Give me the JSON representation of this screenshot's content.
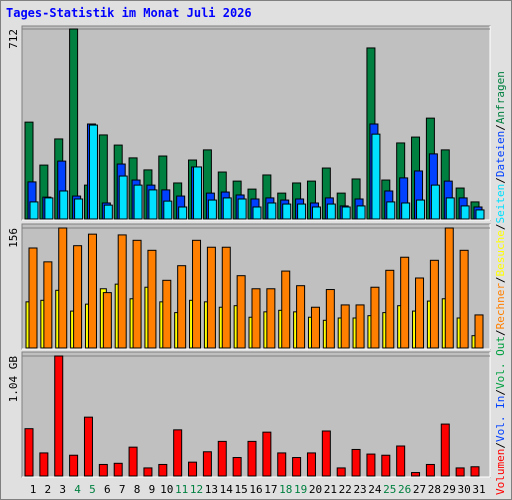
{
  "title": "Tages-Statistik im Monat Juli 2026",
  "legend_separator": "/",
  "chart_data": [
    {
      "type": "bar",
      "ylim": [
        0,
        712
      ],
      "yticks": [
        712
      ],
      "series": [
        {
          "name": "Anfragen",
          "color": "#008040",
          "values": [
            363,
            202,
            300,
            712,
            127,
            315,
            277,
            229,
            184,
            236,
            135,
            221,
            259,
            176,
            142,
            112,
            165,
            97,
            135,
            142,
            191,
            97,
            150,
            641,
            146,
            285,
            307,
            378,
            259,
            116,
            64
          ]
        },
        {
          "name": "Dateien",
          "color": "#0040ff",
          "values": [
            139,
            82,
            217,
            86,
            356,
            60,
            206,
            146,
            127,
            109,
            86,
            195,
            97,
            101,
            90,
            75,
            79,
            71,
            75,
            60,
            79,
            49,
            75,
            356,
            105,
            154,
            180,
            244,
            142,
            79,
            45
          ]
        },
        {
          "name": "Seiten",
          "color": "#00e0ff",
          "values": [
            64,
            79,
            105,
            75,
            352,
            52,
            161,
            127,
            109,
            67,
            45,
            195,
            71,
            79,
            75,
            45,
            60,
            56,
            56,
            45,
            56,
            45,
            49,
            318,
            64,
            60,
            71,
            127,
            79,
            49,
            34
          ]
        }
      ]
    },
    {
      "type": "bar",
      "ylim": [
        0,
        156
      ],
      "yticks": [
        156
      ],
      "series": [
        {
          "name": "Besuche",
          "color": "#ffff00",
          "values": [
            60,
            62,
            75,
            48,
            57,
            77,
            83,
            64,
            79,
            60,
            46,
            62,
            60,
            53,
            55,
            40,
            47,
            49,
            47,
            40,
            36,
            39,
            39,
            42,
            46,
            55,
            48,
            61,
            64,
            39,
            16
          ]
        },
        {
          "name": "Rechner",
          "color": "#ff8000",
          "values": [
            130,
            112,
            156,
            133,
            148,
            72,
            147,
            140,
            127,
            88,
            107,
            140,
            131,
            131,
            94,
            77,
            77,
            100,
            81,
            53,
            76,
            56,
            56,
            79,
            101,
            118,
            91,
            114,
            156,
            127,
            43
          ]
        }
      ]
    },
    {
      "type": "bar",
      "ylim": [
        0,
        1.04
      ],
      "yticks": [
        {
          "value": 1.04,
          "label": "1.04 GB"
        }
      ],
      "categories": [
        "1",
        "2",
        "3",
        "4",
        "5",
        "6",
        "7",
        "8",
        "9",
        "10",
        "11",
        "12",
        "13",
        "14",
        "15",
        "16",
        "17",
        "18",
        "19",
        "20",
        "21",
        "22",
        "23",
        "24",
        "25",
        "26",
        "27",
        "28",
        "29",
        "30",
        "31"
      ],
      "category_colors": [
        "#000000",
        "#000000",
        "#000000",
        "#008040",
        "#008040",
        "#000000",
        "#000000",
        "#000000",
        "#000000",
        "#000000",
        "#008040",
        "#008040",
        "#000000",
        "#000000",
        "#000000",
        "#000000",
        "#000000",
        "#008040",
        "#008040",
        "#000000",
        "#000000",
        "#000000",
        "#000000",
        "#000000",
        "#008040",
        "#008040",
        "#000000",
        "#000000",
        "#000000",
        "#000000",
        "#000000"
      ],
      "series": [
        {
          "name": "Volumen",
          "color": "#ff0000",
          "values": [
            0.41,
            0.2,
            1.04,
            0.18,
            0.51,
            0.1,
            0.11,
            0.25,
            0.07,
            0.1,
            0.4,
            0.12,
            0.21,
            0.3,
            0.16,
            0.3,
            0.38,
            0.2,
            0.16,
            0.2,
            0.39,
            0.07,
            0.23,
            0.19,
            0.18,
            0.26,
            0.03,
            0.1,
            0.45,
            0.07,
            0.08
          ]
        }
      ],
      "legend_only": [
        {
          "name": "Vol. In",
          "color": "#0040ff"
        },
        {
          "name": "Vol. Out",
          "color": "#00a040"
        }
      ]
    }
  ]
}
